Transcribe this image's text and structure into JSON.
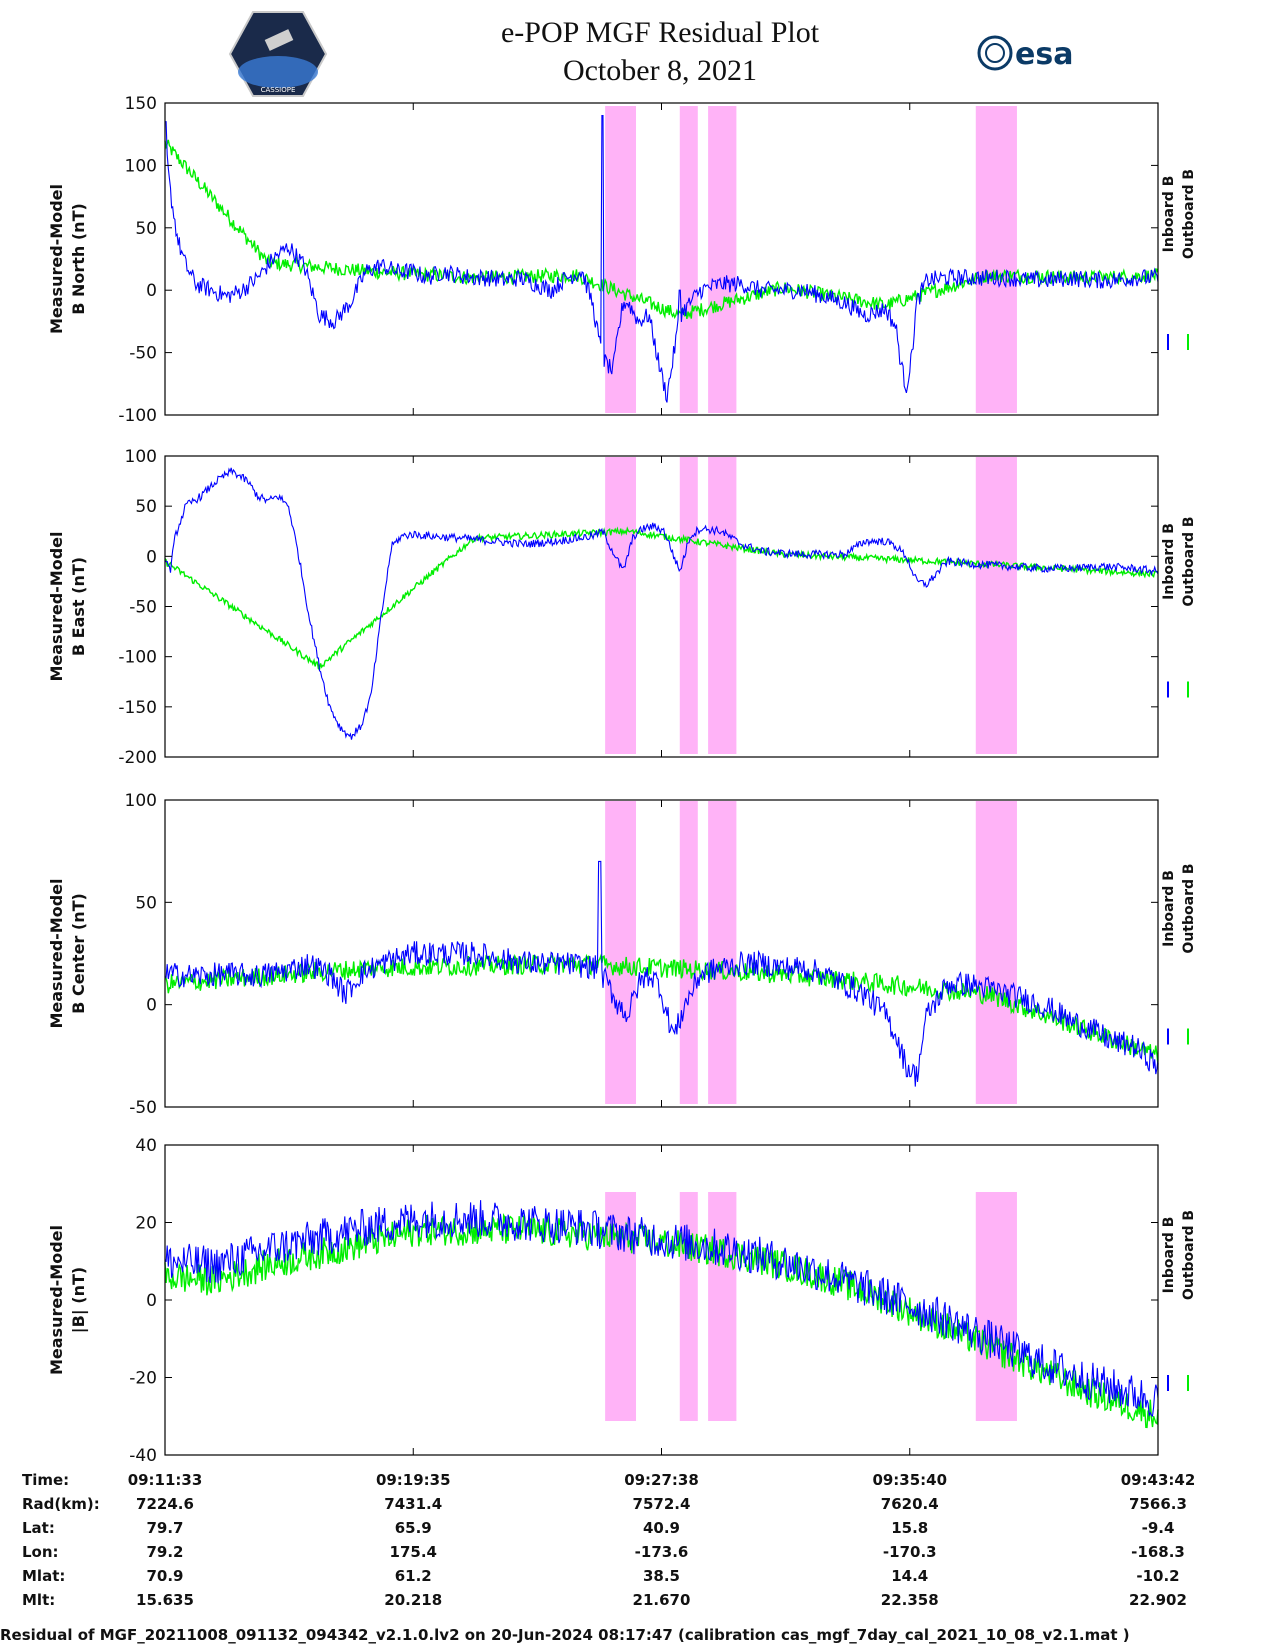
{
  "title_line1": "e-POP MGF Residual Plot",
  "title_line2": "October 8, 2021",
  "logos": {
    "left": "cassiope-logo",
    "left_text": "CASSIOPE",
    "right": "esa-logo",
    "right_text": "esa"
  },
  "colors": {
    "inboard": "#0000ff",
    "outboard": "#00ee00",
    "highlight": "#ffb3f7"
  },
  "chart_data": [
    {
      "type": "line",
      "ylabel": [
        "Measured-Model",
        "B North (nT)"
      ],
      "ylim": [
        -100,
        150
      ],
      "yticks": [
        -100,
        -50,
        0,
        50,
        100,
        150
      ],
      "x_range_seconds": [
        0,
        1929
      ],
      "legend": [
        "Inboard B",
        "Outboard B"
      ],
      "series": [
        {
          "name": "Inboard B",
          "x": [
            0,
            10,
            25,
            40,
            60,
            90,
            120,
            150,
            180,
            210,
            240,
            270,
            300,
            330,
            360,
            390,
            420,
            450,
            480,
            510,
            540,
            570,
            600,
            630,
            660,
            690,
            720,
            750,
            780,
            810,
            830,
            850,
            870,
            880,
            890,
            900,
            920,
            940,
            960,
            975,
            985,
            1000,
            1040,
            1080,
            1120,
            1160,
            1200,
            1240,
            1280,
            1320,
            1360,
            1400,
            1420,
            1430,
            1440,
            1450,
            1460,
            1480,
            1520,
            1560,
            1600,
            1640,
            1680,
            1720,
            1760,
            1800,
            1840,
            1880,
            1929
          ],
          "y": [
            120,
            80,
            40,
            20,
            5,
            0,
            -5,
            0,
            10,
            25,
            35,
            20,
            -20,
            -25,
            -10,
            15,
            20,
            15,
            15,
            10,
            15,
            12,
            10,
            10,
            8,
            10,
            5,
            0,
            10,
            15,
            -10,
            -55,
            -65,
            -35,
            -10,
            -10,
            -25,
            -20,
            -60,
            -85,
            -60,
            -20,
            0,
            5,
            5,
            0,
            0,
            0,
            -5,
            -10,
            -20,
            -15,
            -30,
            -60,
            -78,
            -55,
            -10,
            8,
            10,
            10,
            10,
            10,
            8,
            8,
            10,
            8,
            8,
            10,
            10
          ]
        },
        {
          "name": "Outboard B",
          "x": [
            0,
            200,
            400,
            600,
            800,
            1000,
            1200,
            1400,
            1600,
            1800,
            1929
          ],
          "y": [
            118,
            22,
            15,
            10,
            12,
            -20,
            2,
            -12,
            12,
            10,
            12
          ]
        }
      ],
      "spikes": [
        [
          0,
          135
        ],
        [
          1000,
          0
        ],
        [
          850,
          140
        ]
      ]
    },
    {
      "type": "line",
      "ylabel": [
        "Measured-Model",
        "B East (nT)"
      ],
      "ylim": [
        -200,
        100
      ],
      "yticks": [
        -200,
        -150,
        -100,
        -50,
        0,
        50,
        100
      ],
      "x_range_seconds": [
        0,
        1929
      ],
      "legend": [
        "Inboard B",
        "Outboard B"
      ],
      "series": [
        {
          "name": "Inboard B",
          "x": [
            0,
            10,
            20,
            40,
            70,
            100,
            130,
            160,
            180,
            200,
            220,
            240,
            260,
            280,
            300,
            320,
            340,
            360,
            380,
            400,
            420,
            440,
            460,
            480,
            520,
            580,
            640,
            700,
            760,
            800,
            830,
            850,
            870,
            890,
            910,
            930,
            950,
            970,
            985,
            1000,
            1020,
            1040,
            1080,
            1120,
            1160,
            1200,
            1240,
            1280,
            1320,
            1360,
            1400,
            1420,
            1440,
            1460,
            1480,
            1520,
            1580,
            1640,
            1700,
            1760,
            1820,
            1880,
            1929
          ],
          "y": [
            0,
            -15,
            20,
            50,
            60,
            75,
            85,
            75,
            60,
            55,
            60,
            50,
            0,
            -60,
            -110,
            -150,
            -170,
            -180,
            -170,
            -140,
            -60,
            10,
            20,
            22,
            20,
            18,
            15,
            12,
            15,
            18,
            20,
            25,
            5,
            -15,
            20,
            28,
            30,
            25,
            5,
            -15,
            20,
            28,
            25,
            12,
            5,
            3,
            2,
            2,
            2,
            15,
            15,
            10,
            0,
            -25,
            -28,
            -5,
            -8,
            -10,
            -12,
            -12,
            -10,
            -12,
            -15
          ]
        },
        {
          "name": "Outboard B",
          "x": [
            0,
            300,
            600,
            900,
            1200,
            1500,
            1800,
            1929
          ],
          "y": [
            -5,
            -110,
            18,
            25,
            2,
            -5,
            -14,
            -18
          ]
        }
      ]
    },
    {
      "type": "line",
      "ylabel": [
        "Measured-Model",
        "B Center (nT)"
      ],
      "ylim": [
        -50,
        100
      ],
      "yticks": [
        -50,
        0,
        50,
        100
      ],
      "x_range_seconds": [
        0,
        1929
      ],
      "legend": [
        "Inboard B",
        "Outboard B"
      ],
      "series": [
        {
          "name": "Inboard B",
          "x": [
            0,
            60,
            120,
            180,
            240,
            280,
            320,
            350,
            380,
            420,
            480,
            540,
            600,
            660,
            720,
            780,
            840,
            860,
            880,
            900,
            920,
            940,
            960,
            975,
            990,
            1010,
            1040,
            1080,
            1120,
            1160,
            1200,
            1240,
            1280,
            1320,
            1360,
            1380,
            1400,
            1420,
            1440,
            1460,
            1480,
            1520,
            1560,
            1600,
            1640,
            1680,
            1720,
            1760,
            1800,
            1840,
            1880,
            1929
          ],
          "y": [
            15,
            14,
            15,
            14,
            17,
            20,
            15,
            5,
            15,
            20,
            25,
            25,
            25,
            22,
            20,
            20,
            18,
            10,
            0,
            -5,
            10,
            15,
            10,
            -5,
            -15,
            0,
            15,
            18,
            20,
            20,
            18,
            18,
            15,
            10,
            5,
            0,
            -5,
            -15,
            -30,
            -35,
            -5,
            10,
            10,
            8,
            5,
            2,
            -2,
            -8,
            -12,
            -18,
            -20,
            -30
          ]
        },
        {
          "name": "Outboard B",
          "x": [
            0,
            400,
            800,
            1200,
            1600,
            1929
          ],
          "y": [
            10,
            18,
            20,
            15,
            5,
            -25
          ]
        }
      ],
      "spikes": [
        [
          845,
          70
        ]
      ]
    },
    {
      "type": "line",
      "ylabel": [
        "Measured-Model",
        "|B| (nT)"
      ],
      "ylim": [
        -40,
        40
      ],
      "yticks": [
        -40,
        -20,
        0,
        20,
        40
      ],
      "x_range_seconds": [
        0,
        1929
      ],
      "legend": [
        "Inboard B",
        "Outboard B"
      ],
      "series": [
        {
          "name": "Inboard B",
          "x": [
            0,
            100,
            200,
            300,
            400,
            500,
            600,
            700,
            800,
            900,
            1000,
            1100,
            1200,
            1300,
            1400,
            1500,
            1600,
            1700,
            1800,
            1929
          ],
          "y": [
            10,
            9,
            13,
            16,
            19,
            21,
            21,
            20,
            19,
            17,
            15,
            13,
            10,
            6,
            1,
            -4,
            -10,
            -16,
            -21,
            -26
          ]
        },
        {
          "name": "Outboard B",
          "x": [
            0,
            100,
            200,
            300,
            400,
            500,
            600,
            700,
            800,
            900,
            1000,
            1100,
            1200,
            1300,
            1400,
            1500,
            1600,
            1700,
            1800,
            1929
          ],
          "y": [
            6,
            5,
            9,
            12,
            15,
            18,
            18,
            18,
            17,
            16,
            14,
            12,
            9,
            5,
            0,
            -6,
            -12,
            -18,
            -24,
            -30
          ]
        }
      ]
    }
  ],
  "highlight_bands_seconds": [
    [
      855,
      915
    ],
    [
      1000,
      1035
    ],
    [
      1055,
      1110
    ],
    [
      1575,
      1655
    ]
  ],
  "time_table": {
    "row_labels": [
      "Time:",
      "Rad(km):",
      "Lat:",
      "Lon:",
      "Mlat:",
      "Mlt:"
    ],
    "columns": [
      [
        "09:11:33",
        "7224.6",
        "79.7",
        "79.2",
        "70.9",
        "15.635"
      ],
      [
        "09:19:35",
        "7431.4",
        "65.9",
        "175.4",
        "61.2",
        "20.218"
      ],
      [
        "09:27:38",
        "7572.4",
        "40.9",
        "-173.6",
        "38.5",
        "21.670"
      ],
      [
        "09:35:40",
        "7620.4",
        "15.8",
        "-170.3",
        "14.4",
        "22.358"
      ],
      [
        "09:43:42",
        "7566.3",
        "-9.4",
        "-168.3",
        "-10.2",
        "22.902"
      ]
    ]
  },
  "footer": "Residual of MGF_20211008_091132_094342_v2.1.0.lv2 on 20-Jun-2024 08:17:47 (calibration cas_mgf_7day_cal_2021_10_08_v2.1.mat )"
}
